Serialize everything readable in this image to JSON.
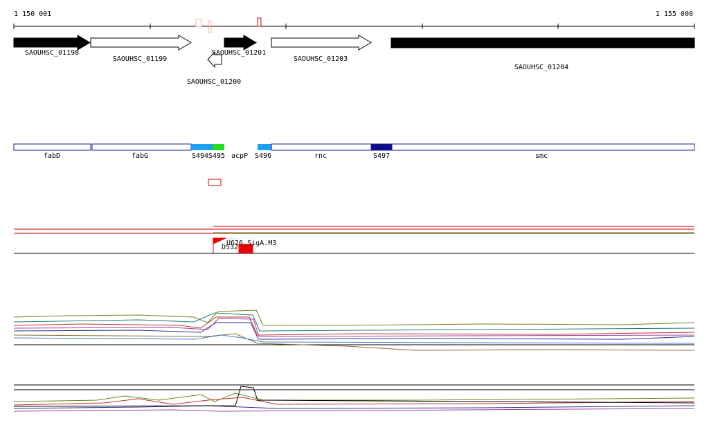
{
  "ruler": {
    "start": "1 150 001",
    "end": "1 155 000"
  },
  "genes": [
    "SAOUHSC_01198",
    "SAOUHSC_01199",
    "SAOUHSC_01200",
    "SAOUHSC_01201",
    "SAOUHSC_01203",
    "SAOUHSC_01204"
  ],
  "features": [
    "fabD",
    "fabG",
    "S494",
    "S495",
    "acpP",
    "S496",
    "rnc",
    "S497",
    "smc"
  ],
  "regulation": {
    "promoter": "U626_SigA.M3",
    "terminator": "D532"
  }
}
